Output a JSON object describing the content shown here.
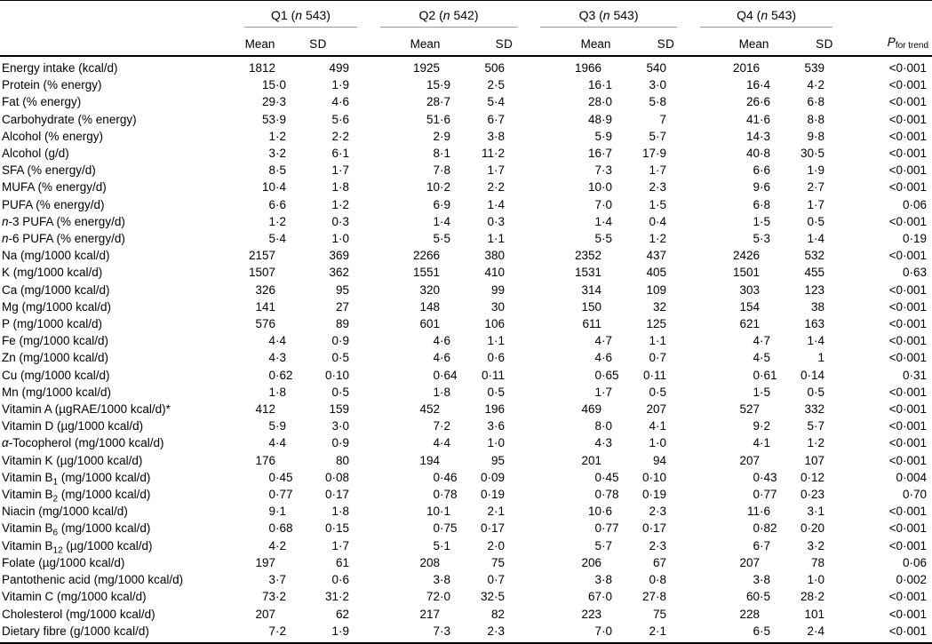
{
  "table": {
    "n_symbol": "n",
    "groups": [
      {
        "q": "Q1",
        "n": "543"
      },
      {
        "q": "Q2",
        "n": "542"
      },
      {
        "q": "Q3",
        "n": "543"
      },
      {
        "q": "Q4",
        "n": "543"
      }
    ],
    "subheaders": {
      "mean": "Mean",
      "sd": "SD"
    },
    "p_header": {
      "symbol": "P",
      "subscript": "for trend"
    },
    "rows": [
      {
        "label": "Energy intake (kcal/d)",
        "values": [
          "1812",
          "499",
          "1925",
          "506",
          "1966",
          "540",
          "2016",
          "539"
        ],
        "p": "<0·001"
      },
      {
        "label": "Protein (% energy)",
        "values": [
          "15·0",
          "1·9",
          "15·9",
          "2·5",
          "16·1",
          "3·0",
          "16·4",
          "4·2"
        ],
        "p": "<0·001"
      },
      {
        "label": "Fat (% energy)",
        "values": [
          "29·3",
          "4·6",
          "28·7",
          "5·4",
          "28·0",
          "5·8",
          "26·6",
          "6·8"
        ],
        "p": "<0·001"
      },
      {
        "label": "Carbohydrate (% energy)",
        "values": [
          "53·9",
          "5·6",
          "51·6",
          "6·7",
          "48·9",
          "7",
          "41·6",
          "8·8"
        ],
        "p": "<0·001"
      },
      {
        "label": "Alcohol (% energy)",
        "values": [
          "1·2",
          "2·2",
          "2·9",
          "3·8",
          "5·9",
          "5·7",
          "14·3",
          "9·8"
        ],
        "p": "<0·001"
      },
      {
        "label": "Alcohol (g/d)",
        "values": [
          "3·2",
          "6·1",
          "8·1",
          "11·2",
          "16·7",
          "17·9",
          "40·8",
          "30·5"
        ],
        "p": "<0·001"
      },
      {
        "label": "SFA (% energy/d)",
        "values": [
          "8·5",
          "1·7",
          "7·8",
          "1·7",
          "7·3",
          "1·7",
          "6·6",
          "1·9"
        ],
        "p": "<0·001"
      },
      {
        "label": "MUFA (% energy/d)",
        "values": [
          "10·4",
          "1·8",
          "10·2",
          "2·2",
          "10·0",
          "2·3",
          "9·6",
          "2·7"
        ],
        "p": "<0·001"
      },
      {
        "label": "PUFA (% energy/d)",
        "values": [
          "6·6",
          "1·2",
          "6·9",
          "1·4",
          "7·0",
          "1·5",
          "6·8",
          "1·7"
        ],
        "p": "0·06"
      },
      {
        "label": "*n*-3 PUFA (% energy/d)",
        "values": [
          "1·2",
          "0·3",
          "1·4",
          "0·3",
          "1·4",
          "0·4",
          "1·5",
          "0·5"
        ],
        "p": "<0·001"
      },
      {
        "label": "*n*-6 PUFA (% energy/d)",
        "values": [
          "5·4",
          "1·0",
          "5·5",
          "1·1",
          "5·5",
          "1·2",
          "5·3",
          "1·4"
        ],
        "p": "0·19"
      },
      {
        "label": "Na (mg/1000 kcal/d)",
        "values": [
          "2157",
          "369",
          "2266",
          "380",
          "2352",
          "437",
          "2426",
          "532"
        ],
        "p": "<0·001"
      },
      {
        "label": "K (mg/1000 kcal/d)",
        "values": [
          "1507",
          "362",
          "1551",
          "410",
          "1531",
          "405",
          "1501",
          "455"
        ],
        "p": "0·63"
      },
      {
        "label": "Ca (mg/1000 kcal/d)",
        "values": [
          "326",
          "95",
          "320",
          "99",
          "314",
          "109",
          "303",
          "123"
        ],
        "p": "<0·001"
      },
      {
        "label": "Mg (mg/1000 kcal/d)",
        "values": [
          "141",
          "27",
          "148",
          "30",
          "150",
          "32",
          "154",
          "38"
        ],
        "p": "<0·001"
      },
      {
        "label": "P (mg/1000 kcal/d)",
        "values": [
          "576",
          "89",
          "601",
          "106",
          "611",
          "125",
          "621",
          "163"
        ],
        "p": "<0·001"
      },
      {
        "label": "Fe (mg/1000 kcal/d)",
        "values": [
          "4·4",
          "0·9",
          "4·6",
          "1·1",
          "4·7",
          "1·1",
          "4·7",
          "1·4"
        ],
        "p": "<0·001"
      },
      {
        "label": "Zn (mg/1000 kcal/d)",
        "values": [
          "4·3",
          "0·5",
          "4·6",
          "0·6",
          "4·6",
          "0·7",
          "4·5",
          "1"
        ],
        "p": "<0·001"
      },
      {
        "label": "Cu (mg/1000 kcal/d)",
        "values": [
          "0·62",
          "0·10",
          "0·64",
          "0·11",
          "0·65",
          "0·11",
          "0·61",
          "0·14"
        ],
        "p": "0·31"
      },
      {
        "label": "Mn (mg/1000 kcal/d)",
        "values": [
          "1·8",
          "0·5",
          "1·8",
          "0·5",
          "1·7",
          "0·5",
          "1·5",
          "0·5"
        ],
        "p": "<0·001"
      },
      {
        "label": "Vitamin A (µgRAE/1000 kcal/d)*",
        "values": [
          "412",
          "159",
          "452",
          "196",
          "469",
          "207",
          "527",
          "332"
        ],
        "p": "<0·001"
      },
      {
        "label": "Vitamin D (µg/1000 kcal/d)",
        "values": [
          "5·9",
          "3·0",
          "7·2",
          "3·6",
          "8·0",
          "4·1",
          "9·2",
          "5·7"
        ],
        "p": "<0·001"
      },
      {
        "label": "*α*-Tocopherol (mg/1000 kcal/d)",
        "values": [
          "4·4",
          "0·9",
          "4·4",
          "1·0",
          "4·3",
          "1·0",
          "4·1",
          "1·2"
        ],
        "p": "<0·001"
      },
      {
        "label": "Vitamin K (µg/1000 kcal/d)",
        "values": [
          "176",
          "80",
          "194",
          "95",
          "201",
          "94",
          "207",
          "107"
        ],
        "p": "<0·001"
      },
      {
        "label": "Vitamin B~1~ (mg/1000 kcal/d)",
        "values": [
          "0·45",
          "0·08",
          "0·46",
          "0·09",
          "0·45",
          "0·10",
          "0·43",
          "0·12"
        ],
        "p": "0·004"
      },
      {
        "label": "Vitamin B~2~ (mg/1000 kcal/d)",
        "values": [
          "0·77",
          "0·17",
          "0·78",
          "0·19",
          "0·78",
          "0·19",
          "0·77",
          "0·23"
        ],
        "p": "0·70"
      },
      {
        "label": "Niacin (mg/1000 kcal/d)",
        "values": [
          "9·1",
          "1·8",
          "10·1",
          "2·1",
          "10·6",
          "2·3",
          "11·6",
          "3·1"
        ],
        "p": "<0·001"
      },
      {
        "label": "Vitamin B~6~ (mg/1000 kcal/d)",
        "values": [
          "0·68",
          "0·15",
          "0·75",
          "0·17",
          "0·77",
          "0·17",
          "0·82",
          "0·20"
        ],
        "p": "<0·001"
      },
      {
        "label": "Vitamin B~12~ (µg/1000 kcal/d)",
        "values": [
          "4·2",
          "1·7",
          "5·1",
          "2·0",
          "5·7",
          "2·3",
          "6·7",
          "3·2"
        ],
        "p": "<0·001"
      },
      {
        "label": "Folate (µg/1000 kcal/d)",
        "values": [
          "197",
          "61",
          "208",
          "75",
          "206",
          "67",
          "207",
          "78"
        ],
        "p": "0·06"
      },
      {
        "label": "Pantothenic acid (mg/1000 kcal/d)",
        "values": [
          "3·7",
          "0·6",
          "3·8",
          "0·7",
          "3·8",
          "0·8",
          "3·8",
          "1·0"
        ],
        "p": "0·002"
      },
      {
        "label": "Vitamin C (mg/1000 kcal/d)",
        "values": [
          "73·2",
          "31·2",
          "72·0",
          "32·5",
          "67·0",
          "27·8",
          "60·5",
          "28·2"
        ],
        "p": "<0·001"
      },
      {
        "label": "Cholesterol (mg/1000 kcal/d)",
        "values": [
          "207",
          "62",
          "217",
          "82",
          "223",
          "75",
          "228",
          "101"
        ],
        "p": "<0·001"
      },
      {
        "label": "Dietary fibre (g/1000 kcal/d)",
        "values": [
          "7·2",
          "1·9",
          "7·3",
          "2·3",
          "7·0",
          "2·1",
          "6·5",
          "2·4"
        ],
        "p": "<0·001"
      }
    ]
  }
}
